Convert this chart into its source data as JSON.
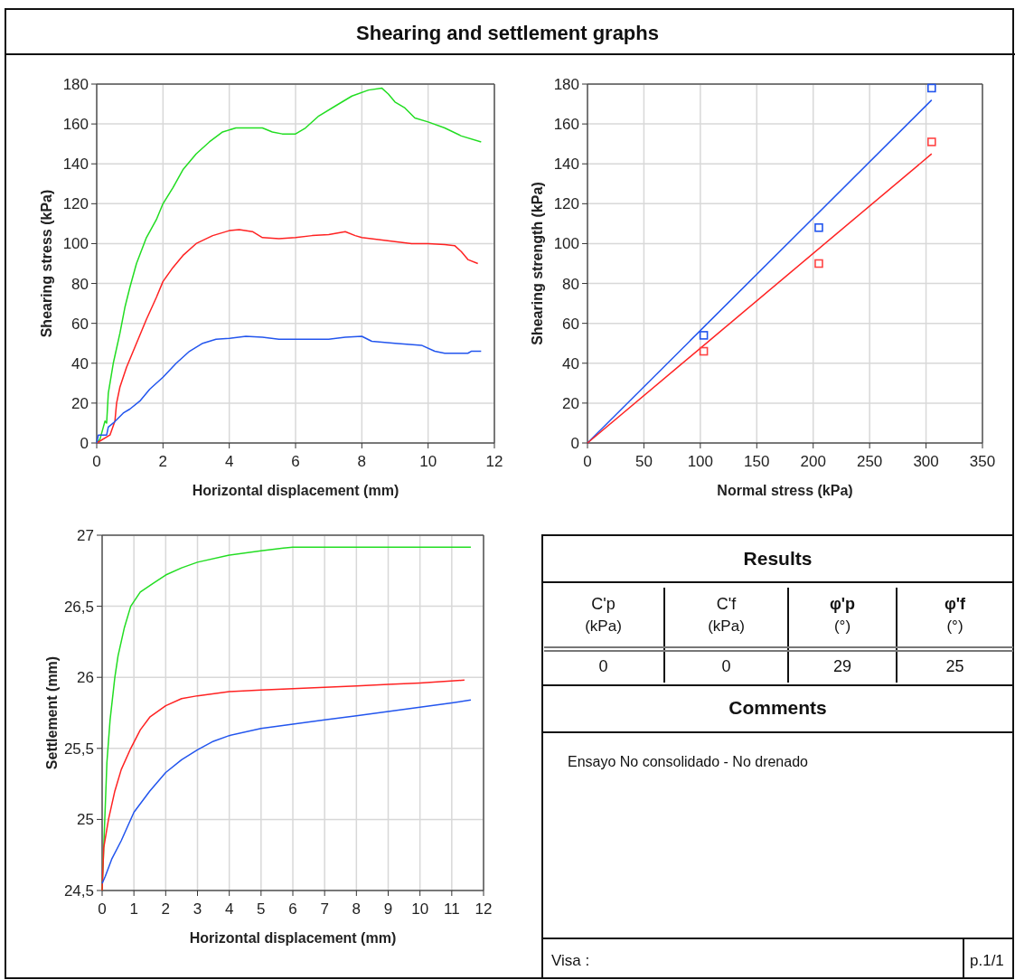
{
  "chart_data": [
    {
      "type": "line",
      "title": "Shearing and settlement graphs",
      "xlabel": "Horizontal displacement (mm)",
      "ylabel": "Shearing stress (kPa)",
      "xlim": [
        0,
        12
      ],
      "xticks": [
        0,
        2,
        4,
        6,
        8,
        10,
        12
      ],
      "ylim": [
        0,
        180
      ],
      "yticks": [
        0,
        20,
        40,
        60,
        80,
        100,
        120,
        140,
        160,
        180
      ],
      "grid": true,
      "series": [
        {
          "color": "#22dd22",
          "x": [
            0,
            0.1,
            0.2,
            0.25,
            0.3,
            0.35,
            0.5,
            0.7,
            0.85,
            1,
            1.2,
            1.5,
            1.8,
            2,
            2.3,
            2.6,
            3,
            3.4,
            3.8,
            4.2,
            5,
            5.3,
            5.6,
            6,
            6.3,
            6.7,
            7.2,
            7.7,
            8.2,
            8.6,
            8.8,
            9,
            9.3,
            9.6,
            10,
            10.5,
            11,
            11.6
          ],
          "values": [
            0,
            2,
            8,
            11,
            10,
            25,
            40,
            55,
            68,
            78,
            90,
            103,
            112,
            120,
            128,
            137,
            145,
            151,
            156,
            158,
            158,
            156,
            155,
            155,
            158,
            164,
            169,
            174,
            177,
            178,
            175,
            171,
            168,
            163,
            161,
            158,
            154,
            151
          ]
        },
        {
          "color": "#ff2222",
          "x": [
            0,
            0.4,
            0.55,
            0.6,
            0.7,
            0.9,
            1.2,
            1.5,
            1.8,
            2,
            2.3,
            2.6,
            3,
            3.5,
            4,
            4.3,
            4.7,
            5,
            5.5,
            6,
            6.5,
            7,
            7.5,
            7.8,
            8,
            8.5,
            9,
            9.5,
            10,
            10.5,
            10.8,
            11,
            11.2,
            11.5
          ],
          "values": [
            0,
            4,
            11,
            20,
            28,
            38,
            50,
            62,
            73,
            81,
            88,
            94,
            100,
            104,
            106.5,
            107,
            106,
            103,
            102.5,
            103,
            104,
            104.5,
            106,
            104,
            103,
            102,
            101,
            100,
            100,
            99.5,
            99,
            96,
            92,
            90
          ]
        },
        {
          "color": "#2255ee",
          "x": [
            0,
            0.05,
            0.3,
            0.35,
            0.5,
            0.8,
            1,
            1.3,
            1.6,
            2,
            2.4,
            2.8,
            3.2,
            3.6,
            4,
            4.5,
            5,
            5.5,
            6,
            7,
            7.5,
            8,
            8.3,
            9,
            9.8,
            10.2,
            10.5,
            11.2,
            11.3,
            11.6
          ],
          "values": [
            0,
            4,
            4,
            8,
            10,
            15,
            17,
            21,
            27,
            33,
            40,
            46,
            50,
            52,
            52.5,
            53.5,
            53,
            52,
            52,
            52,
            53,
            53.5,
            51,
            50,
            49,
            46,
            45,
            45,
            46,
            46
          ]
        }
      ]
    },
    {
      "type": "line",
      "xlabel": "Normal stress (kPa)",
      "ylabel": "Shearing strength (kPa)",
      "xlim": [
        0,
        350
      ],
      "xticks": [
        0,
        50,
        100,
        150,
        200,
        250,
        300,
        350
      ],
      "ylim": [
        0,
        180
      ],
      "yticks": [
        0,
        20,
        40,
        60,
        80,
        100,
        120,
        140,
        160,
        180
      ],
      "grid": true,
      "series": [
        {
          "type": "scatter",
          "marker": "square",
          "color": "#2255ee",
          "x": [
            103,
            205,
            305
          ],
          "values": [
            54,
            108,
            178
          ]
        },
        {
          "type": "scatter",
          "marker": "square",
          "color": "#ff4444",
          "x": [
            103,
            205,
            305
          ],
          "values": [
            46,
            90,
            151
          ]
        },
        {
          "type": "line",
          "color": "#2255ee",
          "x": [
            0,
            305
          ],
          "values": [
            0,
            172
          ]
        },
        {
          "type": "line",
          "color": "#ff2222",
          "x": [
            0,
            305
          ],
          "values": [
            0,
            145
          ]
        }
      ]
    },
    {
      "type": "line",
      "xlabel": "Horizontal displacement (mm)",
      "ylabel": "Settlement (mm)",
      "xlim": [
        0,
        12
      ],
      "xticks": [
        0,
        1,
        2,
        3,
        4,
        5,
        6,
        7,
        8,
        9,
        10,
        11,
        12
      ],
      "ylim": [
        24.5,
        27
      ],
      "yticks": [
        {
          "value": 24.5,
          "label": "24,5"
        },
        25,
        {
          "value": 25.5,
          "label": "25,5"
        },
        26,
        {
          "value": 26.5,
          "label": "26,5"
        },
        27
      ],
      "grid": true,
      "series": [
        {
          "color": "#22dd22",
          "x": [
            0,
            0.05,
            0.1,
            0.15,
            0.25,
            0.4,
            0.5,
            0.7,
            0.9,
            1.2,
            1.6,
            2,
            2.5,
            3,
            4,
            5,
            5.7,
            6,
            8,
            11.6
          ],
          "values": [
            24.5,
            24.8,
            25.1,
            25.4,
            25.7,
            26.0,
            26.15,
            26.35,
            26.5,
            26.6,
            26.66,
            26.72,
            26.77,
            26.81,
            26.86,
            26.89,
            26.91,
            26.915,
            26.915,
            26.915
          ]
        },
        {
          "color": "#ff2222",
          "x": [
            0,
            0.05,
            0.2,
            0.4,
            0.6,
            0.9,
            1.2,
            1.5,
            2,
            2.5,
            3,
            4,
            5,
            6,
            7,
            8,
            9,
            10,
            11.4
          ],
          "values": [
            24.5,
            24.8,
            25.0,
            25.2,
            25.35,
            25.5,
            25.63,
            25.72,
            25.8,
            25.85,
            25.87,
            25.9,
            25.91,
            25.92,
            25.93,
            25.94,
            25.95,
            25.96,
            25.98
          ]
        },
        {
          "color": "#2255ee",
          "x": [
            0,
            0.1,
            0.3,
            0.6,
            1,
            1.5,
            2,
            2.5,
            3,
            3.5,
            4,
            5,
            6,
            7,
            8,
            9,
            10,
            11,
            11.6
          ],
          "values": [
            24.55,
            24.6,
            24.72,
            24.85,
            25.05,
            25.2,
            25.33,
            25.42,
            25.49,
            25.55,
            25.59,
            25.64,
            25.67,
            25.7,
            25.73,
            25.76,
            25.79,
            25.82,
            25.84
          ]
        }
      ]
    },
    {
      "type": "other",
      "title": "Results",
      "annotations": [
        "C'p",
        "(kPa)",
        "C'f",
        "(kPa)",
        "φ'p",
        "(°)",
        "φ'f",
        "(°)",
        "0",
        "0",
        "29",
        "25",
        "Comments",
        "Ensayo No consolidado - No drenado",
        "Visa :",
        "p.1/1"
      ]
    }
  ]
}
